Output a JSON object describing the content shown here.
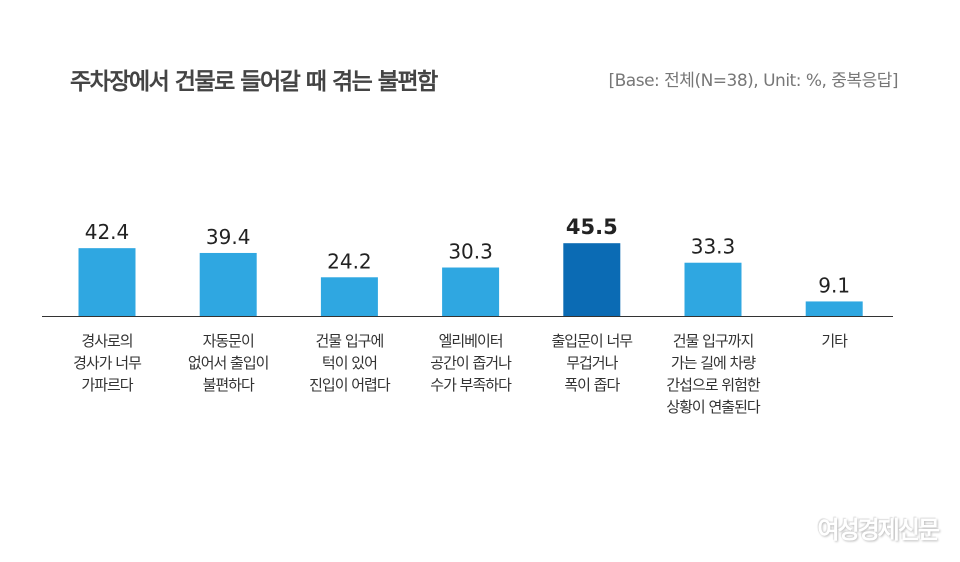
{
  "chart_data": {
    "type": "bar",
    "title": "주차장에서 건물로 들어갈 때 겪는 불편함",
    "subtitle": "[Base: 전체(N=38), Unit: %, 중복응답]",
    "categories": [
      [
        "경사로의",
        "경사가 너무",
        "가파르다"
      ],
      [
        "자동문이",
        "없어서 출입이",
        "불편하다"
      ],
      [
        "건물 입구에",
        "턱이 있어",
        "진입이 어렵다"
      ],
      [
        "엘리베이터",
        "공간이 좁거나",
        "수가 부족하다"
      ],
      [
        "출입문이 너무",
        "무겁거나",
        "폭이 좁다"
      ],
      [
        "건물 입구까지",
        "가는 길에 차량",
        "간섭으로 위험한",
        "상황이 연출된다"
      ],
      [
        "기타"
      ]
    ],
    "values": [
      42.4,
      39.4,
      24.2,
      30.3,
      45.5,
      33.3,
      9.1
    ],
    "highlight_index": 4,
    "colors": {
      "bar": "#2fa7e1",
      "highlight": "#0b6bb4",
      "axis": "#333333"
    },
    "xlabel": "",
    "ylabel": "",
    "grid": false
  },
  "watermark": "여성경제신문"
}
